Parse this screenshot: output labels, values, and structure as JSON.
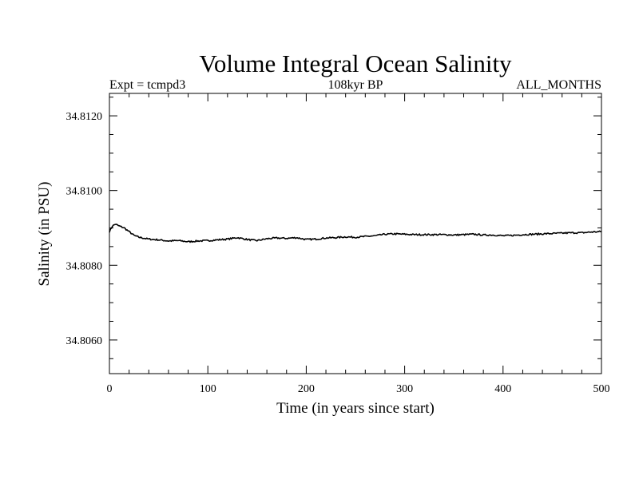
{
  "chart_data": {
    "type": "line",
    "title": "Volume Integral Ocean Salinity",
    "subtitle_left": "Expt = tcmpd3",
    "subtitle_center": "108kyr BP",
    "subtitle_right": "ALL_MONTHS",
    "xlabel": "Time (in years since start)",
    "ylabel": "Salinity (in PSU)",
    "xlim": [
      0,
      500
    ],
    "ylim": [
      34.8051,
      34.8126
    ],
    "xticks": [
      0,
      100,
      200,
      300,
      400,
      500
    ],
    "xtick_labels": [
      "0",
      "100",
      "200",
      "300",
      "400",
      "500"
    ],
    "yticks": [
      34.806,
      34.808,
      34.81,
      34.812
    ],
    "ytick_labels": [
      "34.8060",
      "34.8080",
      "34.8100",
      "34.8120"
    ],
    "grid": false,
    "legend": "none",
    "line_color": "#000000",
    "series": [
      {
        "x": [
          0,
          3,
          6,
          10,
          15,
          20,
          25,
          30,
          40,
          50,
          60,
          70,
          80,
          90,
          100,
          110,
          120,
          130,
          140,
          150,
          160,
          170,
          180,
          190,
          200,
          210,
          220,
          230,
          240,
          250,
          260,
          270,
          280,
          290,
          300,
          310,
          320,
          330,
          340,
          350,
          360,
          370,
          380,
          390,
          400,
          410,
          420,
          430,
          440,
          450,
          460,
          470,
          480,
          490,
          500
        ],
        "y": [
          34.8089,
          34.80905,
          34.8091,
          34.80905,
          34.809,
          34.8089,
          34.8088,
          34.80875,
          34.8087,
          34.80868,
          34.80865,
          34.80866,
          34.80863,
          34.80865,
          34.80866,
          34.80868,
          34.8087,
          34.80874,
          34.80869,
          34.80866,
          34.80871,
          34.80873,
          34.80872,
          34.80874,
          34.80869,
          34.8087,
          34.80873,
          34.80874,
          34.80876,
          34.80875,
          34.80877,
          34.80879,
          34.80883,
          34.80884,
          34.80883,
          34.80882,
          34.80882,
          34.80882,
          34.80882,
          34.80881,
          34.80882,
          34.80883,
          34.80881,
          34.80881,
          34.80879,
          34.8088,
          34.80882,
          34.80883,
          34.80884,
          34.80885,
          34.80886,
          34.80887,
          34.80887,
          34.80889,
          34.8089
        ]
      }
    ]
  }
}
